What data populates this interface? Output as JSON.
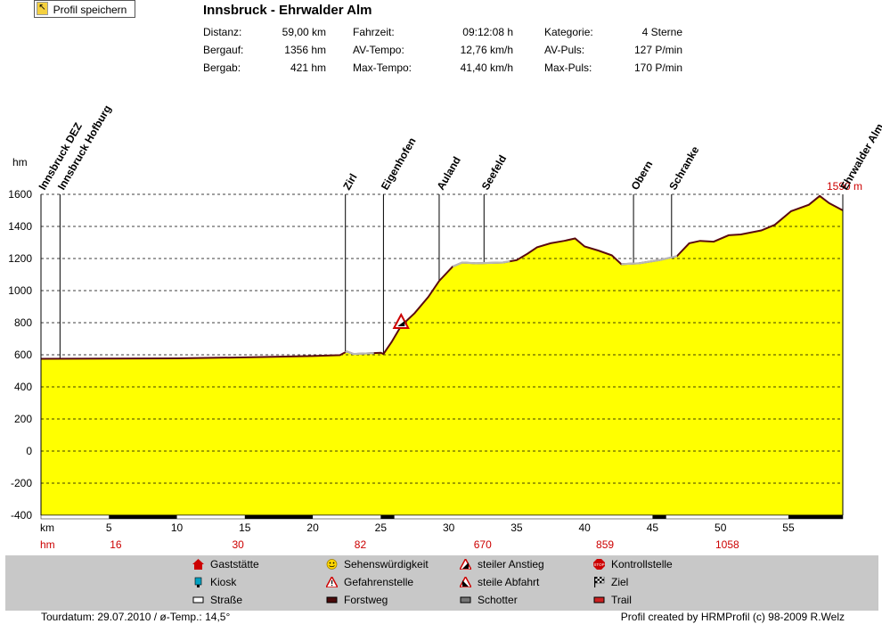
{
  "save_button": {
    "label": "Profil speichern"
  },
  "title": "Innsbruck - Ehrwalder Alm",
  "stats": {
    "col1": [
      {
        "key": "Distanz:",
        "value": "59,00 km"
      },
      {
        "key": "Bergauf:",
        "value": "1356 hm"
      },
      {
        "key": "Bergab:",
        "value": "421 hm"
      }
    ],
    "col2": [
      {
        "key": "Fahrzeit:",
        "value": "09:12:08 h"
      },
      {
        "key": "AV-Tempo:",
        "value": "12,76 km/h"
      },
      {
        "key": "Max-Tempo:",
        "value": "41,40 km/h"
      }
    ],
    "col3": [
      {
        "key": "Kategorie:",
        "value": "4 Sterne"
      },
      {
        "key": "AV-Puls:",
        "value": "127 P/min"
      },
      {
        "key": "Max-Puls:",
        "value": "170 P/min"
      }
    ]
  },
  "chart_data": {
    "type": "area",
    "ylabel": "hm",
    "xlabel": "km",
    "xlim": [
      0,
      59
    ],
    "ylim": [
      -400,
      1600
    ],
    "yticks": [
      -400,
      -200,
      0,
      200,
      400,
      600,
      800,
      1000,
      1200,
      1400,
      1600
    ],
    "xticks": [
      5,
      10,
      15,
      20,
      25,
      30,
      35,
      40,
      45,
      50,
      55
    ],
    "profile": [
      [
        0,
        575
      ],
      [
        5,
        576
      ],
      [
        10,
        578
      ],
      [
        15,
        584
      ],
      [
        20,
        592
      ],
      [
        22,
        598
      ],
      [
        22.5,
        620
      ],
      [
        23,
        605
      ],
      [
        25,
        612
      ],
      [
        25.2,
        605
      ],
      [
        25.8,
        680
      ],
      [
        26.5,
        780
      ],
      [
        27.5,
        860
      ],
      [
        28.5,
        960
      ],
      [
        29.3,
        1060
      ],
      [
        30.3,
        1150
      ],
      [
        31,
        1175
      ],
      [
        32,
        1170
      ],
      [
        34,
        1175
      ],
      [
        35,
        1190
      ],
      [
        35.8,
        1230
      ],
      [
        36.5,
        1270
      ],
      [
        37.5,
        1295
      ],
      [
        38.5,
        1310
      ],
      [
        39.3,
        1325
      ],
      [
        40,
        1275
      ],
      [
        41,
        1250
      ],
      [
        42,
        1220
      ],
      [
        42.7,
        1165
      ],
      [
        44,
        1170
      ],
      [
        45.5,
        1190
      ],
      [
        46.8,
        1215
      ],
      [
        47.7,
        1295
      ],
      [
        48.5,
        1310
      ],
      [
        49.5,
        1305
      ],
      [
        50.6,
        1345
      ],
      [
        51.5,
        1350
      ],
      [
        53,
        1375
      ],
      [
        54,
        1410
      ],
      [
        55.2,
        1495
      ],
      [
        56.5,
        1535
      ],
      [
        57.3,
        1590
      ],
      [
        58,
        1545
      ],
      [
        59,
        1500
      ]
    ],
    "max_elevation_label": "1590 m",
    "waypoints": [
      {
        "name": "Innsbruck DEZ",
        "km": 0
      },
      {
        "name": "Innsbruck Hofburg",
        "km": 1.4
      },
      {
        "name": "Zirl",
        "km": 22.4
      },
      {
        "name": "Eigenhofen",
        "km": 25.2
      },
      {
        "name": "Auland",
        "km": 29.3
      },
      {
        "name": "Seefeld",
        "km": 32.6
      },
      {
        "name": "Obern",
        "km": 43.6
      },
      {
        "name": "Schranke",
        "km": 46.4
      },
      {
        "name": "Ehrwalder Alm",
        "km": 59
      }
    ],
    "warning_marker_km": 26.5,
    "warning_marker_elevation": 800,
    "hm_row_label": "hm",
    "hm_row": [
      {
        "km": 5.5,
        "value": "16"
      },
      {
        "km": 14.5,
        "value": "30"
      },
      {
        "km": 23.5,
        "value": "82"
      },
      {
        "km": 32.5,
        "value": "670"
      },
      {
        "km": 41.5,
        "value": "859"
      },
      {
        "km": 50.5,
        "value": "1058"
      }
    ],
    "gray_segments": [
      [
        22.4,
        24.5
      ],
      [
        30.3,
        34.5
      ],
      [
        42.7,
        46.8
      ]
    ],
    "trail_segments": [
      [
        5,
        10
      ],
      [
        15,
        20
      ],
      [
        25,
        26
      ],
      [
        45,
        46
      ],
      [
        55,
        59
      ]
    ]
  },
  "legend": [
    {
      "label": "Gaststätte",
      "icon": "house-icon",
      "color": "#cc0000"
    },
    {
      "label": "Kiosk",
      "icon": "kiosk-icon",
      "color": "#00a0c0"
    },
    {
      "label": "Straße",
      "icon": "road-icon",
      "color": "#ffffff"
    },
    {
      "label": "Sehenswürdigkeit",
      "icon": "smiley-icon",
      "color": "#ffd700"
    },
    {
      "label": "Gefahrenstelle",
      "icon": "danger-icon",
      "color": "#cc0000"
    },
    {
      "label": "Forstweg",
      "icon": "forest-road-icon",
      "color": "#4a0a0a"
    },
    {
      "label": "steiler Anstieg",
      "icon": "steep-up-icon",
      "color": "#cc0000"
    },
    {
      "label": "steile Abfahrt",
      "icon": "steep-down-icon",
      "color": "#cc0000"
    },
    {
      "label": "Schotter",
      "icon": "gravel-icon",
      "color": "#777777"
    },
    {
      "label": "Kontrollstelle",
      "icon": "stop-icon",
      "color": "#cc0000"
    },
    {
      "label": "Ziel",
      "icon": "finish-flag-icon",
      "color": "#000000"
    },
    {
      "label": "Trail",
      "icon": "trail-icon",
      "color": "#cc2020"
    }
  ],
  "footer": {
    "left": "Tourdatum: 29.07.2010  /  ø-Temp.: 14,5°",
    "right": "Profil created by HRMProfil (c) 98-2009 R.Welz"
  }
}
